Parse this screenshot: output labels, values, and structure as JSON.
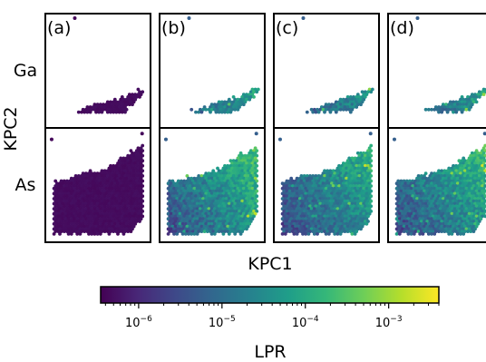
{
  "chart_data": {
    "type": "scatter",
    "description_layout": "2 rows x 4 columns of hexbin scatter panels",
    "xlabel": "KPC1",
    "ylabel": "KPC2",
    "rows": [
      {
        "label": "Ga"
      },
      {
        "label": "As"
      }
    ],
    "columns": [
      {
        "panel_label": "(a)",
        "intensity": 0.0
      },
      {
        "panel_label": "(b)",
        "intensity": 1.0
      },
      {
        "panel_label": "(c)",
        "intensity": 0.7
      },
      {
        "panel_label": "(d)",
        "intensity": 0.9
      }
    ],
    "colorbar": {
      "label": "LPR",
      "scale": "log",
      "range": [
        3.5e-07,
        0.004
      ],
      "ticks": [
        {
          "value": 1e-06,
          "base": "10",
          "exp": "−6"
        },
        {
          "value": 1e-05,
          "base": "10",
          "exp": "−5"
        },
        {
          "value": 0.0001,
          "base": "10",
          "exp": "−4"
        },
        {
          "value": 0.001,
          "base": "10",
          "exp": "−3"
        }
      ],
      "colormap": [
        "#440154",
        "#482878",
        "#3e4989",
        "#31688e",
        "#26828e",
        "#1f9e89",
        "#35b779",
        "#6ece58",
        "#b5de2b",
        "#fde725"
      ]
    }
  }
}
